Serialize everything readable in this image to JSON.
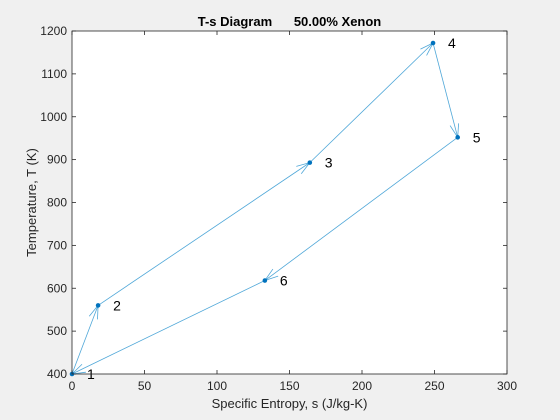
{
  "chart_data": {
    "type": "line",
    "title": "T-s Diagram      50.00% Xenon",
    "xlabel": "Specific Entropy, s (J/kg-K)",
    "ylabel": "Temperature, T (K)",
    "xlim": [
      0,
      300
    ],
    "ylim": [
      400,
      1200
    ],
    "xticks": [
      0,
      50,
      100,
      150,
      200,
      250,
      300
    ],
    "yticks": [
      400,
      500,
      600,
      700,
      800,
      900,
      1000,
      1100,
      1200
    ],
    "grid": false,
    "line_color": "#4fa7d8",
    "marker_color": "#0072bd",
    "points": [
      {
        "label": "1",
        "s": 0,
        "T": 400
      },
      {
        "label": "2",
        "s": 18,
        "T": 560
      },
      {
        "label": "3",
        "s": 164,
        "T": 893
      },
      {
        "label": "4",
        "s": 249,
        "T": 1172
      },
      {
        "label": "5",
        "s": 266,
        "T": 952
      },
      {
        "label": "6",
        "s": 133,
        "T": 618
      }
    ],
    "path_order": [
      "1",
      "2",
      "3",
      "4",
      "5",
      "6",
      "1"
    ]
  }
}
